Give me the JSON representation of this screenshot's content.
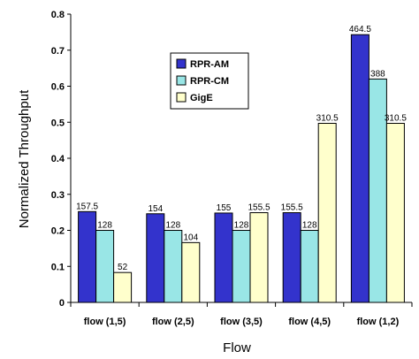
{
  "chart_data": {
    "type": "bar",
    "title": "",
    "xlabel": "Flow",
    "ylabel": "Normalized Throughput",
    "categories": [
      "flow (1,5)",
      "flow (2,5)",
      "flow (3,5)",
      "flow (4,5)",
      "flow (1,2)"
    ],
    "ylim": [
      0,
      0.8
    ],
    "yticks": [
      "0",
      "0.1",
      "0.2",
      "0.3",
      "0.4",
      "0.5",
      "0.6",
      "0.7",
      "0.8"
    ],
    "grid": false,
    "legend_position": "top-center",
    "series": [
      {
        "name": "RPR-AM",
        "color": "#3333cc",
        "values": [
          0.252,
          0.246,
          0.248,
          0.249,
          0.743
        ],
        "labels": [
          "157.5",
          "154",
          "155",
          "155.5",
          "464.5"
        ]
      },
      {
        "name": "RPR-CM",
        "color": "#99e6e6",
        "values": [
          0.2,
          0.2,
          0.2,
          0.2,
          0.62
        ],
        "labels": [
          "128",
          "128",
          "128",
          "128",
          "388"
        ]
      },
      {
        "name": "GigE",
        "color": "#ffffcc",
        "values": [
          0.083,
          0.166,
          0.249,
          0.497,
          0.497
        ],
        "labels": [
          "52",
          "104",
          "155.5",
          "310.5",
          "310.5"
        ]
      }
    ]
  }
}
